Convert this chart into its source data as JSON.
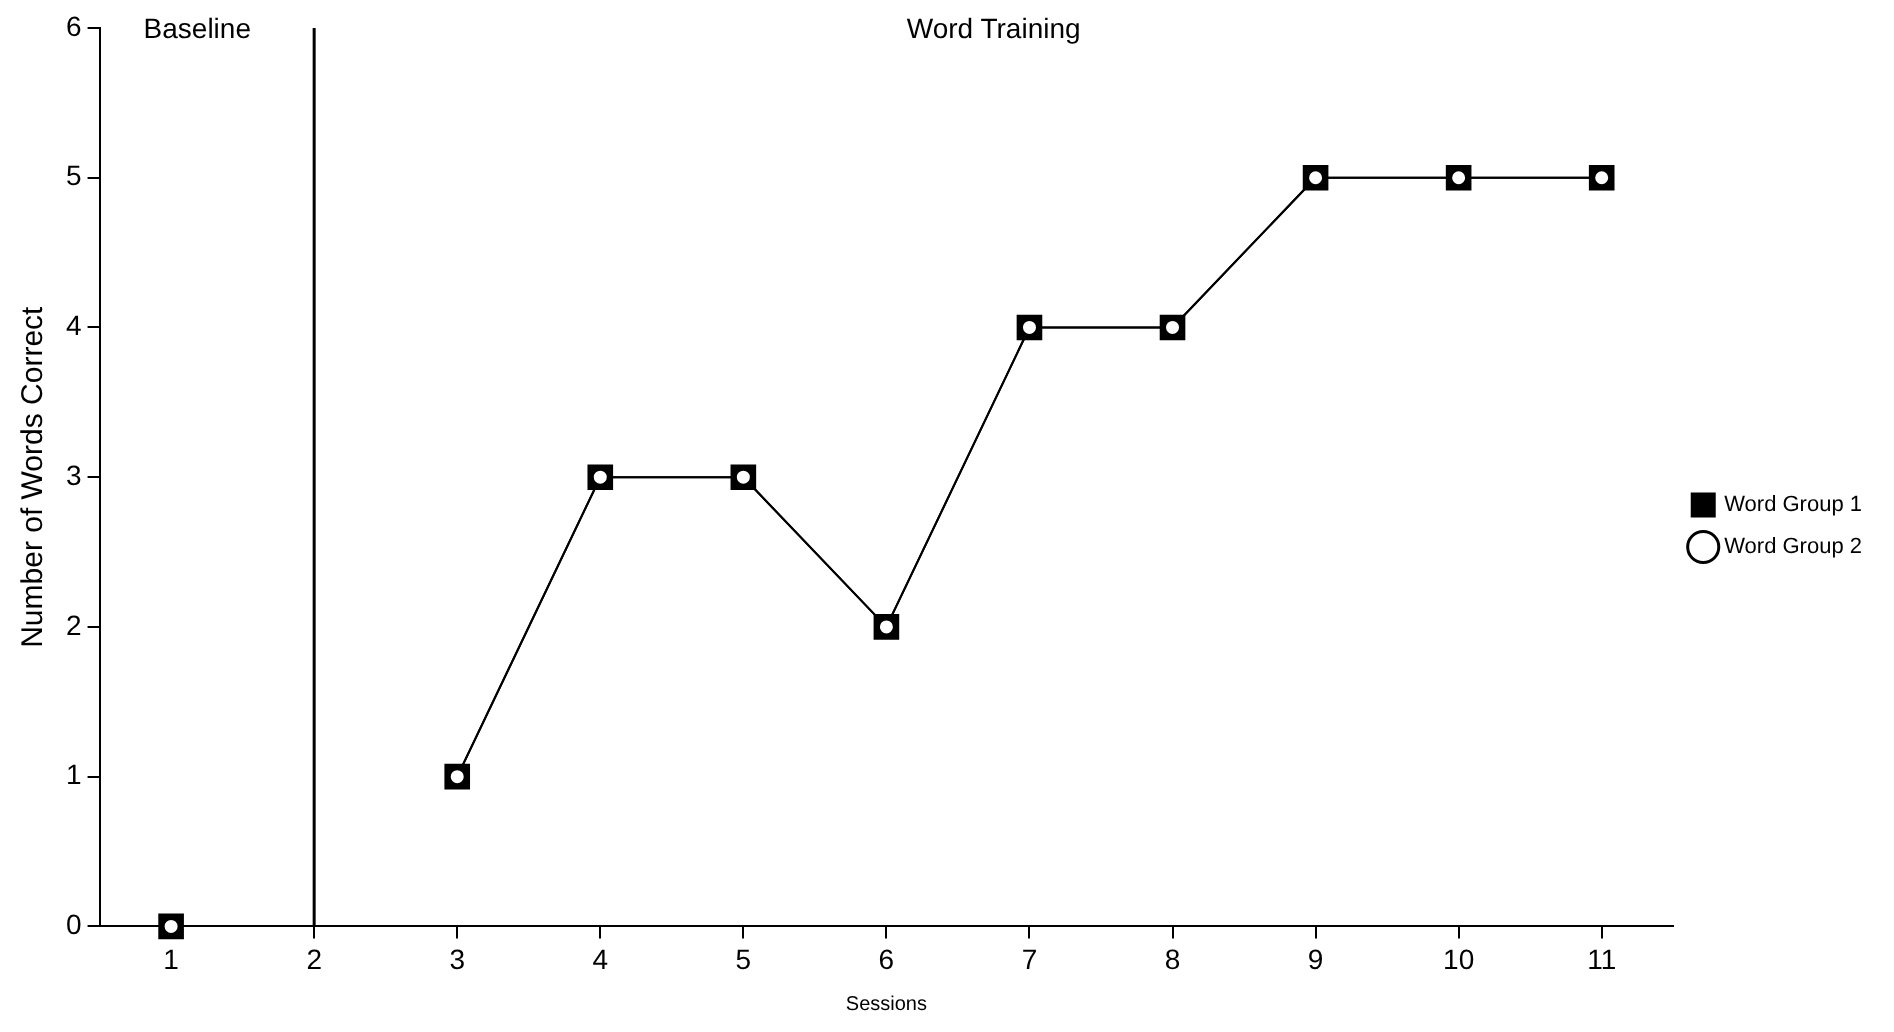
{
  "chart_data": {
    "type": "line",
    "xlabel": "Sessions",
    "ylabel": "Number of Words Correct",
    "x": [
      1,
      2,
      3,
      4,
      5,
      6,
      7,
      8,
      9,
      10,
      11
    ],
    "xlim": [
      0.5,
      11.5
    ],
    "xticks": [
      1,
      2,
      3,
      4,
      5,
      6,
      7,
      8,
      9,
      10,
      11
    ],
    "ylim": [
      0,
      6
    ],
    "yticks": [
      0,
      1,
      2,
      3,
      4,
      5,
      6
    ],
    "grid": false,
    "legend": "right",
    "series": [
      {
        "name": "Word Group 2",
        "color": "#000000",
        "marker": "circle",
        "values": [
          0,
          null,
          1,
          3,
          3,
          2,
          4,
          4,
          5,
          5,
          5
        ]
      },
      {
        "name": "Word Group 1",
        "color": "#000000",
        "marker": "square",
        "values": [
          0,
          null,
          1,
          3,
          3,
          2,
          4,
          4,
          5,
          5,
          5
        ]
      }
    ],
    "ref_lines": [
      {
        "axis": "x",
        "value": 2,
        "color": "#000000"
      }
    ],
    "annotations": [
      "Baseline",
      "Word Training"
    ]
  }
}
